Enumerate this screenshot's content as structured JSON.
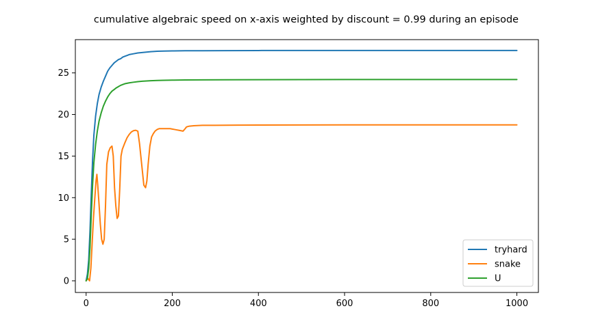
{
  "chart_data": {
    "type": "line",
    "title": "cumulative algebraic speed on x-axis weighted by discount = 0.99   during  an episode",
    "xlabel": "",
    "ylabel": "",
    "xlim": [
      -25,
      1050
    ],
    "ylim": [
      -1.4,
      29
    ],
    "x_ticks": [
      0,
      200,
      400,
      600,
      800,
      1000
    ],
    "y_ticks": [
      0,
      5,
      10,
      15,
      20,
      25
    ],
    "grid": false,
    "legend_position": "lower-right",
    "series": [
      {
        "name": "tryhard",
        "color": "#1f77b4",
        "x": [
          0,
          3,
          6,
          9,
          12,
          15,
          18,
          22,
          26,
          30,
          35,
          40,
          45,
          50,
          55,
          60,
          65,
          70,
          75,
          80,
          85,
          90,
          95,
          100,
          110,
          120,
          130,
          140,
          150,
          165,
          180,
          200,
          230,
          270,
          320,
          400,
          500,
          600,
          700,
          800,
          900,
          1000
        ],
        "values": [
          0,
          0.8,
          2.5,
          6.0,
          10.5,
          14.5,
          17.5,
          19.8,
          21.3,
          22.4,
          23.3,
          24.0,
          24.6,
          25.2,
          25.6,
          25.9,
          26.2,
          26.4,
          26.6,
          26.7,
          26.9,
          27.0,
          27.1,
          27.2,
          27.3,
          27.4,
          27.45,
          27.5,
          27.55,
          27.6,
          27.62,
          27.64,
          27.66,
          27.67,
          27.68,
          27.69,
          27.7,
          27.7,
          27.7,
          27.7,
          27.7,
          27.7
        ]
      },
      {
        "name": "snake",
        "color": "#ff7f0e",
        "x": [
          0,
          4,
          8,
          11,
          14,
          17,
          20,
          23,
          25,
          27,
          30,
          33,
          36,
          39,
          42,
          45,
          48,
          52,
          56,
          60,
          63,
          66,
          69,
          72,
          75,
          78,
          81,
          84,
          87,
          90,
          95,
          100,
          105,
          110,
          115,
          120,
          124,
          127,
          130,
          134,
          138,
          141,
          144,
          148,
          152,
          156,
          160,
          165,
          170,
          175,
          180,
          185,
          190,
          195,
          200,
          205,
          210,
          215,
          220,
          225,
          230,
          233,
          236,
          240,
          250,
          270,
          300,
          350,
          400,
          500,
          600,
          700,
          800,
          900,
          1000
        ],
        "values": [
          0,
          0.3,
          0,
          1.5,
          4.5,
          7.5,
          9.8,
          12.0,
          12.8,
          11.5,
          9.2,
          6.8,
          5.0,
          4.4,
          5.0,
          9.0,
          14.0,
          15.5,
          16.0,
          16.2,
          15.0,
          11.2,
          9.0,
          7.5,
          7.8,
          11.0,
          15.0,
          15.8,
          16.2,
          16.6,
          17.2,
          17.6,
          17.9,
          18.05,
          18.1,
          18.0,
          16.5,
          15.0,
          13.5,
          11.5,
          11.2,
          12.0,
          14.0,
          16.2,
          17.3,
          17.7,
          18.0,
          18.2,
          18.3,
          18.3,
          18.3,
          18.3,
          18.3,
          18.3,
          18.25,
          18.2,
          18.15,
          18.1,
          18.05,
          18.0,
          18.3,
          18.5,
          18.55,
          18.6,
          18.65,
          18.7,
          18.7,
          18.72,
          18.73,
          18.74,
          18.75,
          18.75,
          18.75,
          18.75,
          18.75
        ]
      },
      {
        "name": "U",
        "color": "#2ca02c",
        "x": [
          0,
          3,
          6,
          9,
          12,
          15,
          18,
          22,
          26,
          30,
          35,
          40,
          45,
          50,
          55,
          60,
          65,
          70,
          75,
          80,
          85,
          90,
          95,
          100,
          110,
          120,
          130,
          140,
          150,
          165,
          180,
          200,
          230,
          270,
          320,
          400,
          500,
          600,
          700,
          800,
          900,
          1000
        ],
        "values": [
          0,
          0.3,
          1.5,
          4.0,
          8.0,
          11.5,
          14.2,
          16.4,
          18.0,
          19.2,
          20.2,
          21.0,
          21.6,
          22.1,
          22.5,
          22.8,
          23.0,
          23.2,
          23.35,
          23.5,
          23.6,
          23.7,
          23.75,
          23.8,
          23.88,
          23.95,
          24.0,
          24.03,
          24.06,
          24.09,
          24.11,
          24.13,
          24.15,
          24.16,
          24.17,
          24.18,
          24.19,
          24.2,
          24.2,
          24.2,
          24.2,
          24.2
        ]
      }
    ]
  }
}
